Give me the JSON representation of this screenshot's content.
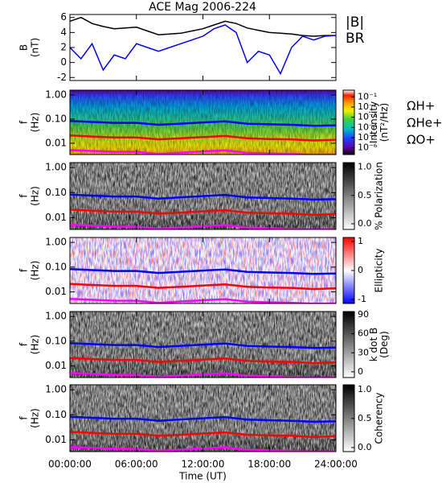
{
  "chart_data": [
    {
      "type": "line",
      "title": "ACE Mag 2006-224",
      "ylabel": [
        "B",
        "(nT)"
      ],
      "x": [
        0,
        1,
        2,
        3,
        4,
        5,
        6,
        7,
        8,
        9,
        10,
        11,
        12,
        13,
        14,
        15,
        16,
        17,
        18,
        19,
        20,
        21,
        22,
        23,
        24
      ],
      "ylim": [
        -2.4,
        6.4
      ],
      "yticks": [
        -2,
        0,
        2,
        4,
        6
      ],
      "series": [
        {
          "name": "|B|",
          "color": "#000000",
          "values": [
            5.5,
            6.0,
            5.2,
            4.8,
            4.5,
            4.6,
            4.7,
            4.2,
            3.7,
            3.8,
            3.9,
            4.2,
            4.5,
            5.0,
            5.5,
            5.2,
            4.6,
            4.3,
            4.0,
            3.9,
            3.8,
            3.6,
            3.5,
            3.6,
            3.6
          ]
        },
        {
          "name": "BR",
          "color": "#0000ff",
          "values": [
            2,
            0.5,
            2.5,
            -1.0,
            1.0,
            0.5,
            2.5,
            2.0,
            1.5,
            2.0,
            2.5,
            3.0,
            3.5,
            4.5,
            5.0,
            4.0,
            0.0,
            1.5,
            1.0,
            -1.5,
            2.0,
            3.5,
            3.0,
            3.5,
            3.6
          ]
        }
      ]
    },
    {
      "type": "spectrogram",
      "ylabel": [
        "f",
        "(Hz)"
      ],
      "log_y": true,
      "ylim": [
        0.0034,
        1.58
      ],
      "yticks": [
        {
          "value": 1,
          "label": "1.00"
        },
        {
          "value": 0.1,
          "label": "0.10"
        },
        {
          "value": 0.01,
          "label": "0.01"
        }
      ],
      "colorbar": {
        "label": [
          "Intensity",
          "(nT²/Hz)"
        ],
        "log": true,
        "clim": [
          2.2e-07,
          0.45
        ],
        "colormap": "rainbow",
        "ticks": [
          {
            "value": 0.1,
            "label": "10⁻¹"
          },
          {
            "value": 0.01,
            "label": "10⁻²"
          },
          {
            "value": 0.001,
            "label": "10⁻³"
          },
          {
            "value": 0.0001,
            "label": "10⁻⁴"
          },
          {
            "value": 1e-05,
            "label": "10⁻⁵"
          },
          {
            "value": 1e-06,
            "label": "10⁻⁶"
          }
        ]
      },
      "x": [
        0,
        2,
        4,
        6,
        8,
        10,
        12,
        14,
        16,
        18,
        20,
        22,
        24
      ],
      "series": [
        {
          "name": "ΩH+",
          "color": "#0000ff",
          "values": [
            0.084,
            0.076,
            0.07,
            0.07,
            0.058,
            0.065,
            0.073,
            0.081,
            0.064,
            0.061,
            0.058,
            0.053,
            0.055
          ]
        },
        {
          "name": "ΩHe+",
          "color": "#ff0000",
          "values": [
            0.021,
            0.019,
            0.0175,
            0.0175,
            0.0145,
            0.016,
            0.018,
            0.02,
            0.016,
            0.015,
            0.0145,
            0.013,
            0.014
          ]
        },
        {
          "name": "ΩO+",
          "color": "#ff00ff",
          "values": [
            0.0052,
            0.0048,
            0.0044,
            0.0044,
            0.0036,
            0.0041,
            0.0046,
            0.0051,
            0.004,
            0.0038,
            0.0036,
            0.0033,
            0.0034
          ]
        }
      ]
    },
    {
      "type": "spectrogram",
      "ylabel": [
        "f",
        "(Hz)"
      ],
      "log_y": true,
      "ylim": [
        0.0034,
        1.58
      ],
      "yticks": [
        {
          "value": 1,
          "label": "1.00"
        },
        {
          "value": 0.1,
          "label": "0.10"
        },
        {
          "value": 0.01,
          "label": "0.01"
        }
      ],
      "colorbar": {
        "label": [
          "% Polarization"
        ],
        "clim": [
          -0.1,
          1.08
        ],
        "colormap": "gray",
        "ticks": [
          {
            "value": 0,
            "label": "0.0"
          },
          {
            "value": 0.5,
            "label": "0.5"
          },
          {
            "value": 1,
            "label": "1.0"
          }
        ]
      }
    },
    {
      "type": "spectrogram",
      "ylabel": [
        "f",
        "(Hz)"
      ],
      "log_y": true,
      "ylim": [
        0.0034,
        1.58
      ],
      "yticks": [
        {
          "value": 1,
          "label": "1.00"
        },
        {
          "value": 0.1,
          "label": "0.10"
        },
        {
          "value": 0.01,
          "label": "0.01"
        }
      ],
      "colorbar": {
        "label": [
          "Ellipticity"
        ],
        "clim": [
          -1.14,
          1.14
        ],
        "colormap": "bwr",
        "ticks": [
          1,
          0,
          -1
        ]
      }
    },
    {
      "type": "spectrogram",
      "ylabel": [
        "f",
        "(Hz)"
      ],
      "log_y": true,
      "ylim": [
        0.0034,
        1.58
      ],
      "yticks": [
        {
          "value": 1,
          "label": "1.00"
        },
        {
          "value": 0.1,
          "label": "0.10"
        },
        {
          "value": 0.01,
          "label": "0.01"
        }
      ],
      "colorbar": {
        "label": [
          "k dot B",
          "(Deg)"
        ],
        "clim": [
          -9,
          95
        ],
        "colormap": "gray",
        "ticks": [
          90,
          60,
          30,
          0
        ]
      }
    },
    {
      "type": "spectrogram",
      "ylabel": [
        "f",
        "(Hz)"
      ],
      "log_y": true,
      "ylim": [
        0.0034,
        1.58
      ],
      "yticks": [
        {
          "value": 1,
          "label": "1.00"
        },
        {
          "value": 0.1,
          "label": "0.10"
        },
        {
          "value": 0.01,
          "label": "0.01"
        }
      ],
      "colorbar": {
        "label": [
          "Coherency"
        ],
        "clim": [
          -0.07,
          1.08
        ],
        "colormap": "gray",
        "ticks": [
          {
            "value": 0,
            "label": "0.0"
          },
          {
            "value": 0.5,
            "label": "0.5"
          },
          {
            "value": 1,
            "label": "1.0"
          }
        ]
      },
      "xlabel": "Time (UT)",
      "xlim": [
        0,
        24
      ],
      "xticks": [
        {
          "value": 0,
          "label": "00:00:00"
        },
        {
          "value": 6,
          "label": "06:00:00"
        },
        {
          "value": 12,
          "label": "12:00:00"
        },
        {
          "value": 18,
          "label": "18:00:00"
        },
        {
          "value": 24,
          "label": "24:00:00"
        }
      ]
    }
  ]
}
